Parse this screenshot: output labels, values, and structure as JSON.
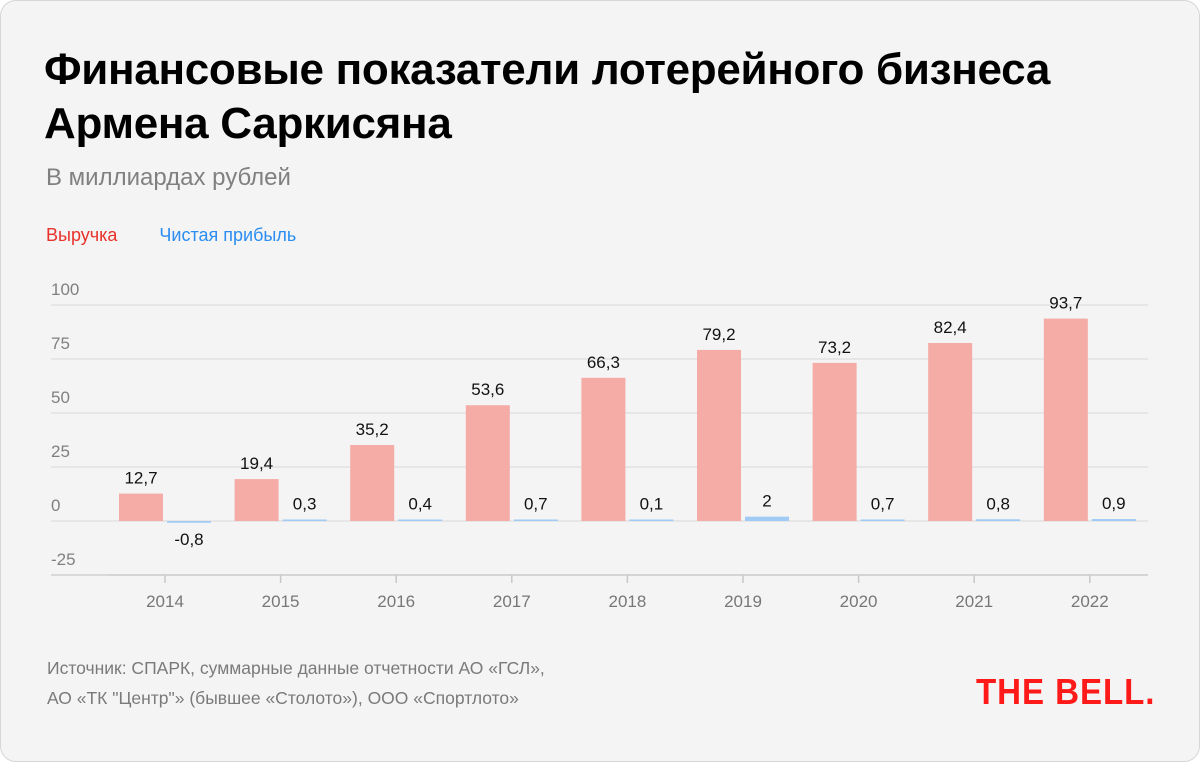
{
  "title": "Финансовые показатели лотерейного бизнеса Армена Саркисяна",
  "subtitle": "В миллиардах рублей",
  "legend": [
    {
      "label": "Выручка",
      "color": "#e8312a"
    },
    {
      "label": "Чистая прибыль",
      "color": "#2b8def"
    }
  ],
  "footer": {
    "source_line1": "Источник: СПАРК, суммарные данные отчетности АО «ГСЛ»,",
    "source_line2": "АО «ТК \"Центр\"» (бывшее «Столото»), ООО «Спортлото»"
  },
  "logo": "THE BELL.",
  "chart_data": {
    "type": "bar",
    "title": "Финансовые показатели лотерейного бизнеса Армена Саркисяна",
    "subtitle": "В миллиардах рублей",
    "xlabel": "",
    "ylabel": "",
    "categories": [
      "2014",
      "2015",
      "2016",
      "2017",
      "2018",
      "2019",
      "2020",
      "2021",
      "2022"
    ],
    "series": [
      {
        "name": "Выручка",
        "color": "#f5aca6",
        "values": [
          12.7,
          19.4,
          35.2,
          53.6,
          66.3,
          79.2,
          73.2,
          82.4,
          93.7
        ],
        "labels": [
          "12,7",
          "19,4",
          "35,2",
          "53,6",
          "66,3",
          "79,2",
          "73,2",
          "82,4",
          "93,7"
        ]
      },
      {
        "name": "Чистая прибыль",
        "color": "#9fcbf5",
        "values": [
          -0.8,
          0.3,
          0.4,
          0.7,
          0.1,
          2,
          0.7,
          0.8,
          0.9
        ],
        "labels": [
          "-0,8",
          "0,3",
          "0,4",
          "0,7",
          "0,1",
          "2",
          "0,7",
          "0,8",
          "0,9"
        ]
      }
    ],
    "yticks": [
      100,
      75,
      50,
      25,
      0,
      -25
    ],
    "ytick_labels": [
      "100",
      "75",
      "50",
      "25",
      "0",
      "-25"
    ],
    "ylim": [
      -25,
      100
    ],
    "grid": true,
    "legend_position": "top-left"
  }
}
